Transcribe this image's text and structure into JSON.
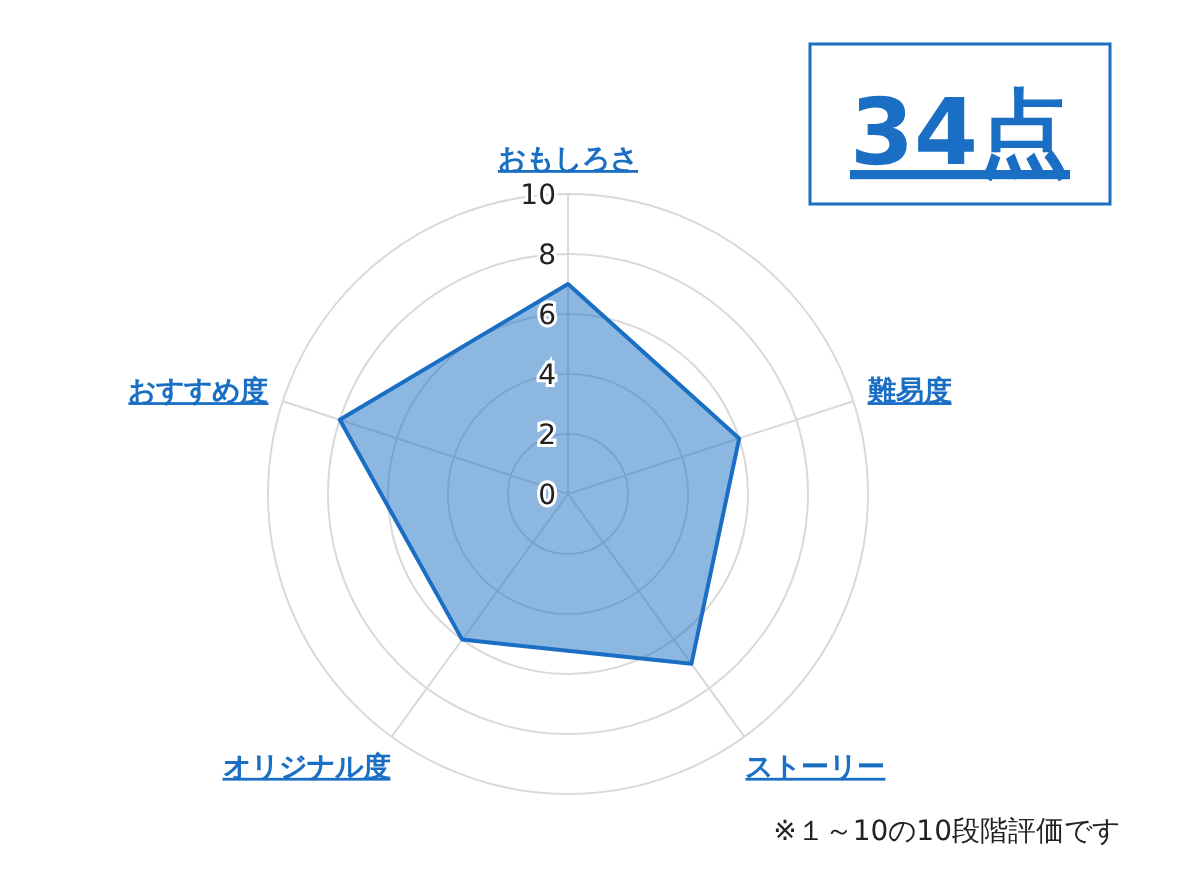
{
  "chart_data": {
    "type": "radar",
    "categories": [
      "おもしろさ",
      "難易度",
      "ストーリー",
      "オリジナル度",
      "おすすめ度"
    ],
    "series": [
      {
        "color": "#1a6fc4",
        "values": [
          7,
          6,
          7,
          6,
          8
        ]
      }
    ],
    "ylim": [
      0,
      10
    ],
    "yticks": [
      0,
      2,
      4,
      6,
      8,
      10
    ],
    "grid": true,
    "annotations": [
      "34点",
      "※１～10の10段階評価です"
    ]
  }
}
